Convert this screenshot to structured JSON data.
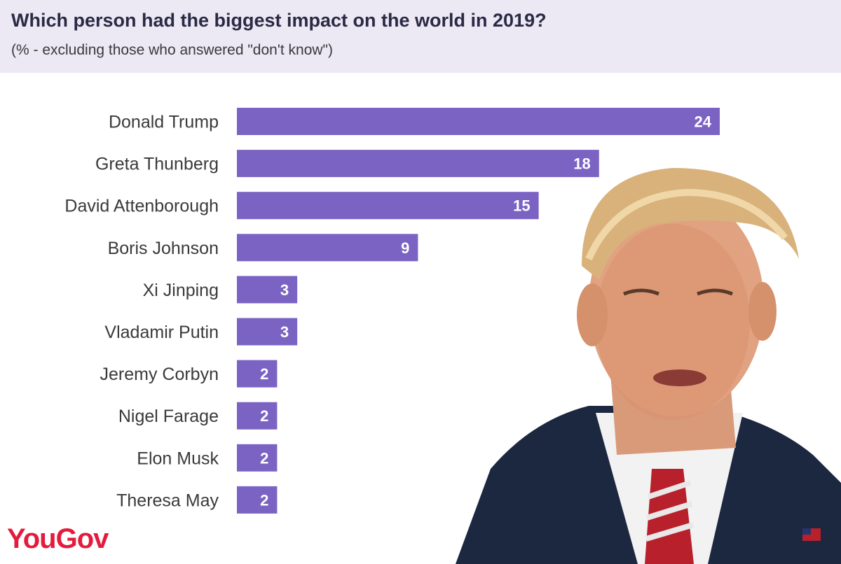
{
  "header": {
    "title": "Which person had the biggest impact on the world in 2019?",
    "subtitle": "(% - excluding those who answered \"don't know\")"
  },
  "brand": {
    "logo_text": "YouGov",
    "logo_color": "#e31b3c"
  },
  "chart_data": {
    "type": "bar",
    "orientation": "horizontal",
    "categories": [
      "Donald Trump",
      "Greta Thunberg",
      "David Attenborough",
      "Boris Johnson",
      "Xi Jinping",
      "Vladamir Putin",
      "Jeremy Corbyn",
      "Nigel Farage",
      "Elon Musk",
      "Theresa May"
    ],
    "values": [
      24,
      18,
      15,
      9,
      3,
      3,
      2,
      2,
      2,
      2
    ],
    "xlim": [
      0,
      24
    ],
    "bar_color": "#7b63c3",
    "grid": false,
    "data_labels": true
  },
  "colors": {
    "header_bg": "#ece8f4",
    "bar": "#7b63c3",
    "title_text": "#2b2a45"
  }
}
